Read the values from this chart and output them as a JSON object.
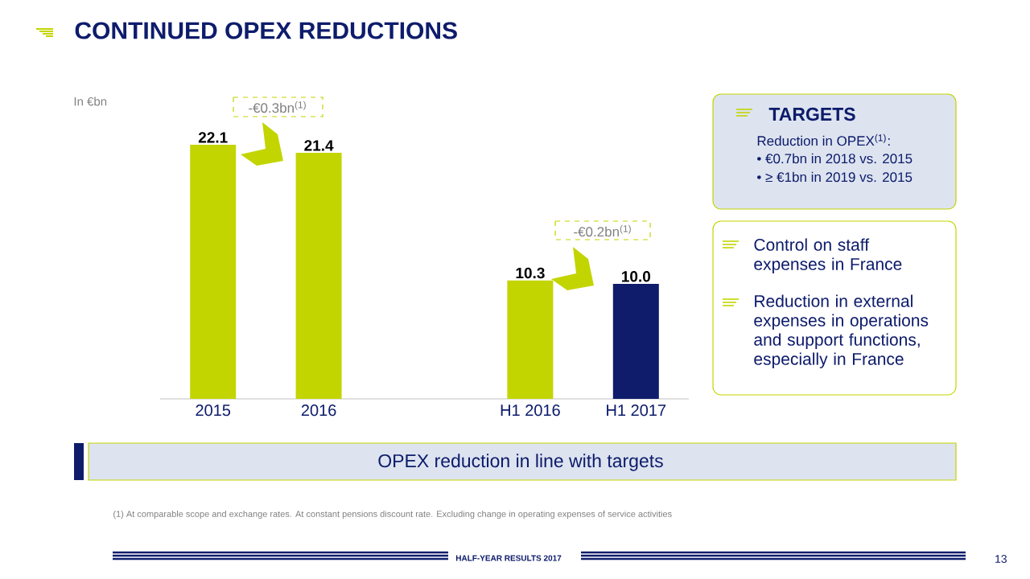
{
  "chart_data": {
    "type": "bar",
    "title": "CONTINUED OPEX REDUCTIONS",
    "categories": [
      "2015",
      "2016",
      null,
      "H1 2016",
      "H1 2017"
    ],
    "values": [
      22.1,
      21.4,
      null,
      10.3,
      10.0
    ],
    "colors": [
      "#c3d500",
      "#c3d500",
      "#c3d500",
      "#c3d500",
      "#0e1c6b"
    ],
    "value_labels": [
      "22.1",
      "21.4",
      null,
      "10.3",
      "10.0"
    ],
    "tick_labels": "x",
    "annotations": [
      "In €bn",
      "-€0.3bn$^{(1)}$",
      "-€0.2bn$^{(1)}$",
      "TARGETS",
      "Reduction in OPEX$^{(1)}$:",
      "• €0.7bn in 2018 vs. 2015",
      "• ≥ €1bn in 2019 vs. 2015",
      "Control on staff expenses in France",
      "Reduction in external expenses in operations and support functions, especially in France",
      "OPEX reduction in line with targets",
      "(1) At comparable scope and exchange rates. At constant pensions discount rate. Excluding change in operating expenses of service activities",
      "HALF-YEAR RESULTS 2017",
      "13"
    ]
  }
}
